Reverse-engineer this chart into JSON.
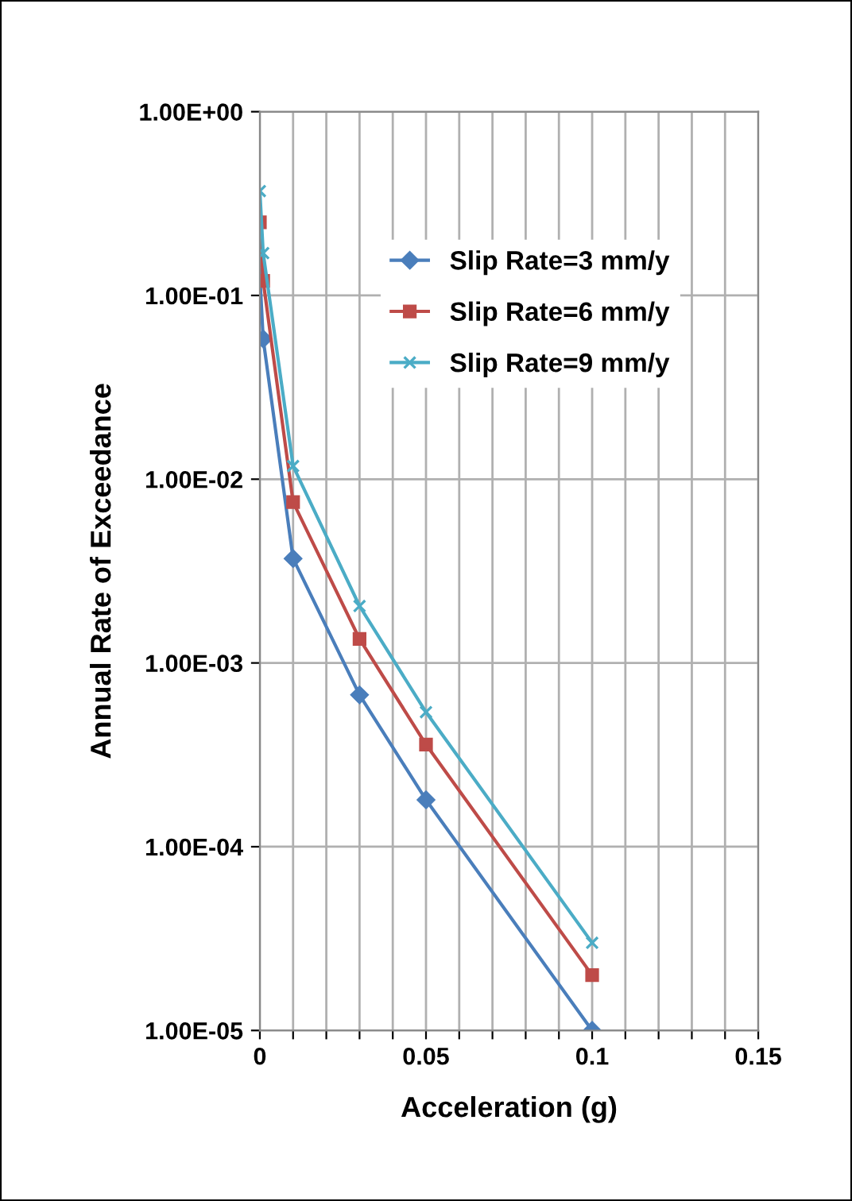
{
  "chart_data": {
    "type": "line",
    "xlabel": "Acceleration (g)",
    "ylabel": "Annual Rate of Exceedance",
    "log": "y",
    "x": [
      0,
      0.001,
      0.01,
      0.03,
      0.05,
      0.1
    ],
    "series": [
      {
        "name": "Slip Rate=3 mm/y",
        "color": "#4a7ebb",
        "marker": "diamond",
        "values": [
          0.128,
          0.058,
          0.0037,
          0.00067,
          0.00018,
          1e-05
        ]
      },
      {
        "name": "Slip Rate=6 mm/y",
        "color": "#be4b48",
        "marker": "square",
        "values": [
          0.25,
          0.12,
          0.0075,
          0.00135,
          0.00036,
          2e-05
        ]
      },
      {
        "name": "Slip Rate=9 mm/y",
        "color": "#4bacc6",
        "marker": "cross",
        "values": [
          0.37,
          0.17,
          0.0118,
          0.00204,
          0.00054,
          3e-05
        ]
      }
    ],
    "xlim": [
      0,
      0.15
    ],
    "xticks": [
      0,
      {
        "value": 0.01,
        "label": null
      },
      {
        "value": 0.02,
        "label": null
      },
      {
        "value": 0.03,
        "label": null
      },
      {
        "value": 0.04,
        "label": null
      },
      0.05,
      {
        "value": 0.06,
        "label": null
      },
      {
        "value": 0.07,
        "label": null
      },
      {
        "value": 0.08,
        "label": null
      },
      {
        "value": 0.09,
        "label": null
      },
      0.1,
      {
        "value": 0.11,
        "label": null
      },
      {
        "value": 0.12,
        "label": null
      },
      {
        "value": 0.13,
        "label": null
      },
      {
        "value": 0.14,
        "label": null
      },
      0.15
    ],
    "ylim": [
      1e-05,
      1
    ],
    "yticks": [
      {
        "value": 1e-05,
        "label": "1.00E-05"
      },
      {
        "value": 0.0001,
        "label": "1.00E-04"
      },
      {
        "value": 0.001,
        "label": "1.00E-03"
      },
      {
        "value": 0.01,
        "label": "1.00E-02"
      },
      {
        "value": 0.1,
        "label": "1.00E-01"
      },
      {
        "value": 1,
        "label": "1.00E+00"
      }
    ],
    "grid": true,
    "legend": "right",
    "line_style": "solid"
  }
}
